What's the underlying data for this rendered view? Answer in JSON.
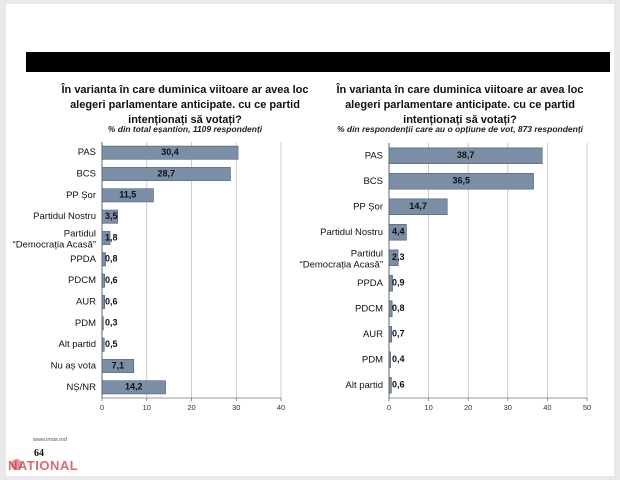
{
  "brand": "NATIONAL",
  "source": "www.imas.md",
  "page_number": "64",
  "colors": {
    "bar": "#7a8ea6",
    "bar_stroke": "#4d5f74",
    "grid": "#bfbfbf",
    "header": "#000000"
  },
  "chart_data": [
    {
      "type": "bar",
      "orientation": "horizontal",
      "title": "În varianta în care duminica viitoare ar avea loc alegeri parlamentare anticipate. cu ce partid intenționați să votați?",
      "subtitle": "% din total eșantion, 1109 respondenți",
      "categories": [
        "PAS",
        "BCS",
        "PP Șor",
        "Partidul Nostru",
        "Partidul “Democrația Acasă”",
        "PPDA",
        "PDCM",
        "AUR",
        "PDM",
        "Alt partid",
        "Nu aș vota",
        "NȘ/NR"
      ],
      "values": [
        30.4,
        28.7,
        11.5,
        3.5,
        1.8,
        0.8,
        0.6,
        0.6,
        0.3,
        0.5,
        7.1,
        14.2
      ],
      "value_labels": [
        "30,4",
        "28,7",
        "11,5",
        "3,5",
        "1,8",
        "0,8",
        "0,6",
        "0,6",
        "0,3",
        "0,5",
        "7,1",
        "14,2"
      ],
      "xlim": [
        0,
        40
      ],
      "ticks": [
        0,
        10,
        20,
        30,
        40
      ],
      "tick_labels": [
        "0",
        "10",
        "20",
        "30",
        "40"
      ],
      "grid": true
    },
    {
      "type": "bar",
      "orientation": "horizontal",
      "title": "În varianta în care duminica viitoare ar avea loc alegeri parlamentare anticipate. cu ce partid intenționați să votați?",
      "subtitle": "% din respondenții care au o opțiune de vot, 873 respondenți",
      "categories": [
        "PAS",
        "BCS",
        "PP Șor",
        "Partidul Nostru",
        "Partidul “Democrația Acasă”",
        "PPDA",
        "PDCM",
        "AUR",
        "PDM",
        "Alt partid"
      ],
      "values": [
        38.7,
        36.5,
        14.7,
        4.4,
        2.3,
        0.9,
        0.8,
        0.7,
        0.4,
        0.6
      ],
      "value_labels": [
        "38,7",
        "36,5",
        "14,7",
        "4,4",
        "2,3",
        "0,9",
        "0,8",
        "0,7",
        "0,4",
        "0,6"
      ],
      "xlim": [
        0,
        50
      ],
      "ticks": [
        0,
        10,
        20,
        30,
        40,
        50
      ],
      "tick_labels": [
        "0",
        "10",
        "20",
        "30",
        "40",
        "50"
      ],
      "grid": true
    }
  ]
}
